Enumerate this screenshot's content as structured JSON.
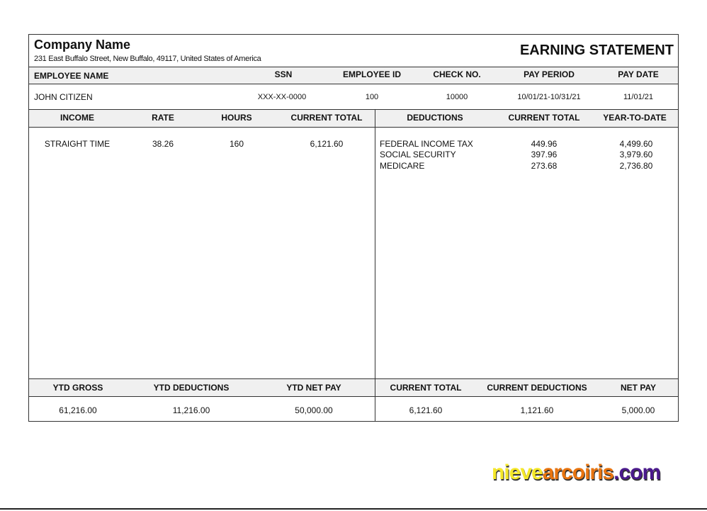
{
  "company": {
    "name": "Company Name",
    "address": "231 East Buffalo Street, New Buffalo, 49117, United States of America"
  },
  "title": "EARNING STATEMENT",
  "employee_headers": {
    "name": "EMPLOYEE NAME",
    "ssn": "SSN",
    "id": "EMPLOYEE ID",
    "check": "CHECK NO.",
    "period": "PAY PERIOD",
    "date": "PAY DATE"
  },
  "employee": {
    "name": "JOHN CITIZEN",
    "ssn": "XXX-XX-0000",
    "id": "100",
    "check": "10000",
    "period": "10/01/21-10/31/21",
    "date": "11/01/21"
  },
  "income_headers": [
    "INCOME",
    "RATE",
    "HOURS",
    "CURRENT TOTAL"
  ],
  "income_rows": [
    {
      "income": "STRAIGHT TIME",
      "rate": "38.26",
      "hours": "160",
      "total": "6,121.60"
    }
  ],
  "deduction_headers": [
    "DEDUCTIONS",
    "CURRENT TOTAL",
    "YEAR-TO-DATE"
  ],
  "deduction_rows": [
    {
      "name": "FEDERAL INCOME TAX",
      "current": "449.96",
      "ytd": "4,499.60"
    },
    {
      "name": "SOCIAL SECURITY",
      "current": "397.96",
      "ytd": "3,979.60"
    },
    {
      "name": "MEDICARE",
      "current": "273.68",
      "ytd": "2,736.80"
    }
  ],
  "summary_headers": [
    "YTD GROSS",
    "YTD DEDUCTIONS",
    "YTD NET PAY",
    "CURRENT TOTAL",
    "CURRENT DEDUCTIONS",
    "NET PAY"
  ],
  "summary_values": [
    "61,216.00",
    "11,216.00",
    "50,000.00",
    "6,121.60",
    "1,121.60",
    "5,000.00"
  ],
  "watermark": {
    "part1": "nieve",
    "part2": "arcoiris",
    "part3": ".com",
    "colors": [
      "#f5e82a",
      "#e8740f",
      "#4b1a8c"
    ]
  }
}
